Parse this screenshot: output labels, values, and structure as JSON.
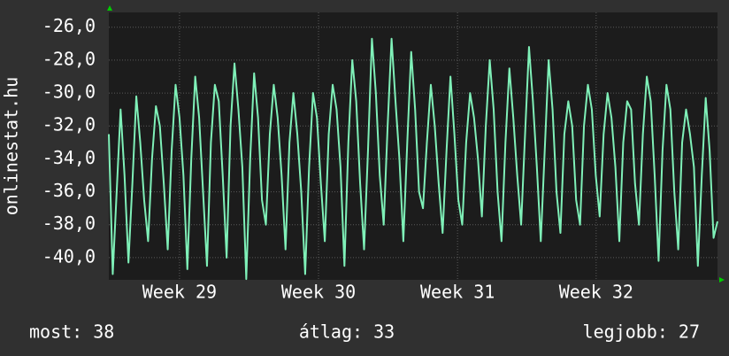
{
  "chart_data": {
    "type": "line",
    "y_label": "onlinestat.hu",
    "values": [
      -32.5,
      -41.0,
      -36.0,
      -31.0,
      -35.0,
      -40.3,
      -35.5,
      -30.2,
      -33.0,
      -36.5,
      -39.0,
      -34.0,
      -30.8,
      -32.0,
      -35.5,
      -39.5,
      -33.5,
      -29.5,
      -31.5,
      -35.0,
      -40.7,
      -34.0,
      -29.0,
      -31.5,
      -36.0,
      -40.5,
      -33.0,
      -29.5,
      -30.5,
      -35.0,
      -40.0,
      -32.0,
      -28.2,
      -31.0,
      -34.5,
      -41.3,
      -34.0,
      -28.8,
      -31.5,
      -36.5,
      -38.0,
      -32.5,
      -29.5,
      -31.5,
      -35.0,
      -39.5,
      -33.0,
      -30.0,
      -32.5,
      -36.0,
      -41.0,
      -34.5,
      -30.0,
      -31.5,
      -35.5,
      -39.0,
      -32.5,
      -29.5,
      -31.0,
      -34.5,
      -40.5,
      -33.0,
      -28.0,
      -30.5,
      -35.5,
      -39.5,
      -33.5,
      -26.7,
      -30.0,
      -35.0,
      -38.0,
      -32.0,
      -26.7,
      -30.5,
      -34.0,
      -39.0,
      -33.0,
      -27.5,
      -31.0,
      -36.0,
      -37.0,
      -33.0,
      -29.5,
      -32.0,
      -35.5,
      -38.5,
      -33.5,
      -29.0,
      -32.5,
      -36.5,
      -38.0,
      -33.0,
      -30.0,
      -31.5,
      -34.0,
      -37.5,
      -32.0,
      -28.0,
      -31.0,
      -36.0,
      -39.0,
      -33.0,
      -28.5,
      -31.5,
      -35.0,
      -38.0,
      -32.5,
      -27.2,
      -30.5,
      -34.5,
      -39.0,
      -33.5,
      -28.0,
      -31.0,
      -36.0,
      -38.5,
      -32.5,
      -30.5,
      -32.0,
      -36.5,
      -38.0,
      -32.0,
      -29.5,
      -31.0,
      -35.0,
      -37.5,
      -32.5,
      -30.0,
      -31.5,
      -34.5,
      -39.0,
      -33.0,
      -30.5,
      -31.0,
      -35.5,
      -38.0,
      -32.5,
      -29.0,
      -30.5,
      -35.0,
      -40.2,
      -33.5,
      -29.5,
      -31.0,
      -36.0,
      -39.5,
      -33.0,
      -31.0,
      -32.5,
      -34.5,
      -40.5,
      -35.0,
      -30.3,
      -33.5,
      -38.8,
      -37.8
    ],
    "color": "#7ff0b8",
    "xlim": [
      0,
      155
    ],
    "xticks": [
      {
        "value": 18,
        "label": "Week 29"
      },
      {
        "value": 53.4,
        "label": "Week 30"
      },
      {
        "value": 88.8,
        "label": "Week 31"
      },
      {
        "value": 124.1,
        "label": "Week 32"
      }
    ],
    "ylim": [
      -41.35,
      -25.1
    ],
    "yticks": [
      {
        "value": -26,
        "label": "-26,0"
      },
      {
        "value": -28,
        "label": "-28,0"
      },
      {
        "value": -30,
        "label": "-30,0"
      },
      {
        "value": -32,
        "label": "-32,0"
      },
      {
        "value": -34,
        "label": "-34,0"
      },
      {
        "value": -36,
        "label": "-36,0"
      },
      {
        "value": -38,
        "label": "-38,0"
      },
      {
        "value": -40,
        "label": "-40,0"
      }
    ],
    "grid": true,
    "footer": [
      "most: 38",
      "átlag: 33",
      "legjobb: 27"
    ]
  }
}
